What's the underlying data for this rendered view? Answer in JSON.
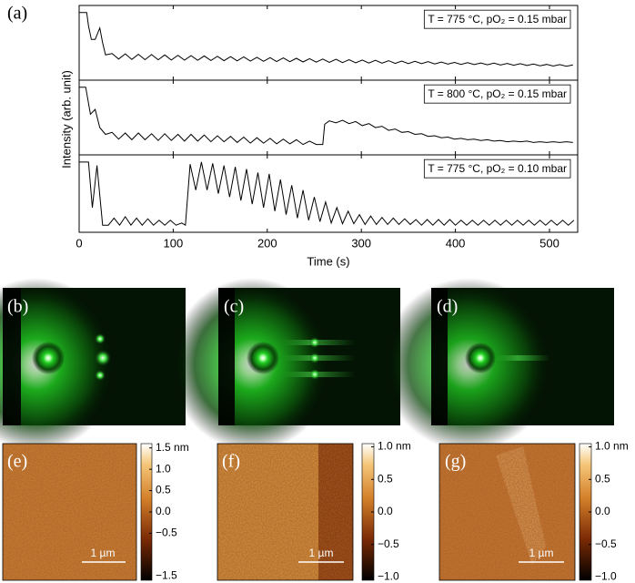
{
  "panel_labels": [
    "(a)",
    "(b)",
    "(c)",
    "(d)",
    "(e)",
    "(f)",
    "(g)"
  ],
  "ylabel": "Intensity (arb. unit)",
  "scale_bar": "1 µm",
  "chart_data": [
    {
      "type": "line",
      "annotation": "T = 775 °C, pO₂ = 0.15 mbar",
      "xlim": [
        0,
        530
      ],
      "ylim": [
        0,
        1
      ],
      "x": [
        0,
        8,
        10,
        13,
        17,
        22,
        25,
        28,
        35,
        42,
        49,
        56,
        63,
        70,
        77,
        84,
        91,
        98,
        105,
        112,
        119,
        126,
        133,
        140,
        147,
        154,
        161,
        168,
        175,
        182,
        189,
        196,
        203,
        210,
        217,
        224,
        231,
        238,
        245,
        252,
        259,
        266,
        273,
        280,
        287,
        294,
        301,
        308,
        315,
        322,
        329,
        336,
        343,
        350,
        357,
        364,
        371,
        378,
        385,
        392,
        399,
        406,
        413,
        420,
        427,
        434,
        441,
        448,
        455,
        462,
        469,
        476,
        483,
        490,
        497,
        504,
        511,
        518,
        525
      ],
      "series": [
        {
          "color": "#000000",
          "values": [
            0.95,
            0.95,
            0.75,
            0.55,
            0.55,
            0.72,
            0.5,
            0.32,
            0.34,
            0.26,
            0.336,
            0.254,
            0.33,
            0.25,
            0.326,
            0.248,
            0.32,
            0.245,
            0.315,
            0.243,
            0.31,
            0.24,
            0.305,
            0.238,
            0.3,
            0.235,
            0.295,
            0.232,
            0.29,
            0.23,
            0.285,
            0.226,
            0.28,
            0.222,
            0.275,
            0.22,
            0.27,
            0.216,
            0.265,
            0.213,
            0.26,
            0.21,
            0.255,
            0.207,
            0.25,
            0.204,
            0.245,
            0.2,
            0.24,
            0.198,
            0.235,
            0.195,
            0.23,
            0.192,
            0.225,
            0.19,
            0.22,
            0.187,
            0.215,
            0.184,
            0.21,
            0.18,
            0.205,
            0.177,
            0.2,
            0.174,
            0.198,
            0.17,
            0.195,
            0.167,
            0.19,
            0.164,
            0.185,
            0.16,
            0.18,
            0.156,
            0.177,
            0.153,
            0.172
          ]
        }
      ]
    },
    {
      "type": "line",
      "annotation": "T = 800 °C, pO₂ = 0.15 mbar",
      "xlim": [
        0,
        530
      ],
      "ylim": [
        0,
        1
      ],
      "x": [
        0,
        7,
        12,
        17,
        22,
        28,
        35,
        42,
        49,
        56,
        63,
        70,
        77,
        84,
        91,
        98,
        105,
        112,
        119,
        126,
        133,
        140,
        147,
        154,
        161,
        168,
        175,
        182,
        189,
        196,
        203,
        210,
        217,
        224,
        231,
        238,
        245,
        252,
        259,
        261,
        266,
        273,
        280,
        287,
        294,
        301,
        308,
        315,
        322,
        329,
        336,
        343,
        350,
        357,
        364,
        371,
        378,
        385,
        392,
        399,
        406,
        413,
        420,
        427,
        434,
        441,
        448,
        455,
        462,
        469,
        476,
        483,
        490,
        497,
        504,
        511,
        518,
        525
      ],
      "series": [
        {
          "color": "#000000",
          "values": [
            0.95,
            0.95,
            0.55,
            0.62,
            0.35,
            0.25,
            0.28,
            0.18,
            0.27,
            0.17,
            0.27,
            0.17,
            0.26,
            0.16,
            0.26,
            0.16,
            0.25,
            0.15,
            0.25,
            0.15,
            0.24,
            0.14,
            0.23,
            0.14,
            0.22,
            0.13,
            0.21,
            0.12,
            0.2,
            0.12,
            0.19,
            0.11,
            0.18,
            0.11,
            0.17,
            0.1,
            0.15,
            0.1,
            0.1,
            0.4,
            0.45,
            0.42,
            0.46,
            0.41,
            0.44,
            0.38,
            0.41,
            0.35,
            0.37,
            0.31,
            0.33,
            0.28,
            0.29,
            0.25,
            0.26,
            0.22,
            0.23,
            0.2,
            0.21,
            0.18,
            0.19,
            0.17,
            0.18,
            0.16,
            0.17,
            0.15,
            0.16,
            0.14,
            0.15,
            0.14,
            0.15,
            0.13,
            0.14,
            0.13,
            0.14,
            0.13,
            0.14,
            0.13
          ]
        }
      ]
    },
    {
      "type": "line",
      "annotation": "T = 775 °C, pO₂ = 0.10 mbar",
      "xlim": [
        0,
        530
      ],
      "ylim": [
        0,
        1
      ],
      "xticks": [
        0,
        100,
        200,
        300,
        400,
        500
      ],
      "xlabel": "Time (s)",
      "x": [
        0,
        10,
        14,
        19,
        25,
        31,
        37,
        43,
        49,
        55,
        61,
        67,
        73,
        79,
        85,
        91,
        97,
        103,
        109,
        113,
        118,
        124,
        130,
        136,
        142,
        148,
        154,
        160,
        166,
        172,
        178,
        184,
        190,
        196,
        202,
        208,
        214,
        220,
        226,
        232,
        238,
        244,
        250,
        256,
        262,
        268,
        274,
        280,
        286,
        292,
        298,
        304,
        310,
        316,
        322,
        328,
        334,
        340,
        346,
        352,
        358,
        364,
        370,
        376,
        382,
        388,
        394,
        400,
        406,
        412,
        418,
        424,
        430,
        436,
        442,
        448,
        454,
        460,
        466,
        472,
        478,
        484,
        490,
        496,
        502,
        508,
        514,
        520,
        526
      ],
      "series": [
        {
          "color": "#000000",
          "values": [
            0.95,
            0.95,
            0.3,
            0.9,
            0.05,
            0.05,
            0.15,
            0.05,
            0.17,
            0.05,
            0.15,
            0.05,
            0.14,
            0.05,
            0.12,
            0.05,
            0.12,
            0.05,
            0.08,
            0.05,
            0.92,
            0.55,
            0.95,
            0.55,
            0.93,
            0.5,
            0.9,
            0.45,
            0.88,
            0.4,
            0.85,
            0.35,
            0.8,
            0.3,
            0.78,
            0.25,
            0.7,
            0.2,
            0.62,
            0.15,
            0.55,
            0.12,
            0.45,
            0.1,
            0.38,
            0.08,
            0.3,
            0.07,
            0.25,
            0.07,
            0.2,
            0.06,
            0.18,
            0.06,
            0.16,
            0.06,
            0.15,
            0.06,
            0.14,
            0.06,
            0.13,
            0.05,
            0.13,
            0.05,
            0.13,
            0.05,
            0.13,
            0.05,
            0.12,
            0.05,
            0.12,
            0.05,
            0.12,
            0.05,
            0.12,
            0.05,
            0.12,
            0.05,
            0.12,
            0.05,
            0.12,
            0.05,
            0.12,
            0.05,
            0.12,
            0.05,
            0.12,
            0.05,
            0.12
          ]
        }
      ]
    },
    {
      "type": "colorbar",
      "ylim": [
        -1.6,
        1.6
      ],
      "yticks": [
        {
          "value": 1.5,
          "label": "1.5 nm"
        },
        {
          "value": 1,
          "label": "1.0"
        },
        {
          "value": 0.5,
          "label": "0.5"
        },
        {
          "value": 0,
          "label": "0.0"
        },
        {
          "value": -0.5,
          "label": "−0.5"
        },
        {
          "value": -1.5,
          "label": "−1.5"
        }
      ]
    },
    {
      "type": "colorbar",
      "ylim": [
        -1.05,
        1.05
      ],
      "yticks": [
        {
          "value": 1,
          "label": "1.0 nm"
        },
        {
          "value": 0.5,
          "label": "0.5"
        },
        {
          "value": 0,
          "label": "0.0"
        },
        {
          "value": -0.5,
          "label": "−0.5"
        },
        {
          "value": -1,
          "label": "−1.0"
        }
      ]
    },
    {
      "type": "colorbar",
      "ylim": [
        -1.05,
        1.05
      ],
      "yticks": [
        {
          "value": 1,
          "label": "1.0 nm"
        },
        {
          "value": 0.5,
          "label": "0.5"
        },
        {
          "value": 0,
          "label": "0.0"
        },
        {
          "value": -0.5,
          "label": "−0.5"
        },
        {
          "value": -1,
          "label": "−1.0"
        }
      ]
    }
  ]
}
